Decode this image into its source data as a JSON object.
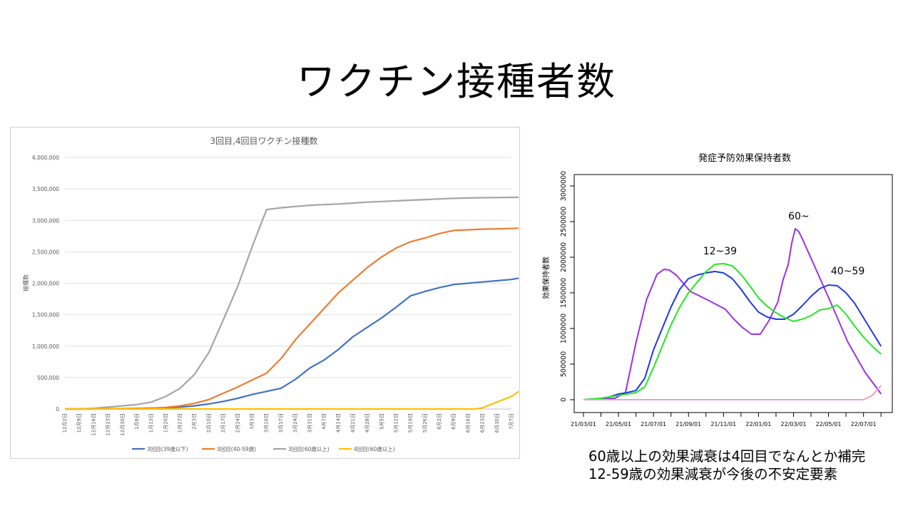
{
  "slide": {
    "title": "ワクチン接種者数"
  },
  "caption": {
    "line1": "60歳以上の効果減衰は4回目でなんとか補完",
    "line2": "12-59歳の効果減衰が今後の不安定要素"
  },
  "chart_data": [
    {
      "type": "line",
      "title": "3回目,4回目ワクチン接種数",
      "xlabel": "",
      "ylabel": "接種数",
      "ylim": [
        0,
        4000000
      ],
      "yticks": [
        0,
        500000,
        1000000,
        1500000,
        2000000,
        2500000,
        3000000,
        3500000,
        4000000
      ],
      "ytick_labels": [
        "0",
        "500,000",
        "1,000,000",
        "1,500,000",
        "2,000,000",
        "2,500,000",
        "3,000,000",
        "3,500,000",
        "4,000,000"
      ],
      "x_tick_labels": [
        "12月2日",
        "12月9日",
        "12月16日",
        "12月23日",
        "12月30日",
        "1月6日",
        "1月13日",
        "1月20日",
        "1月27日",
        "2月3日",
        "2月10日",
        "2月17日",
        "2月24日",
        "3月3日",
        "3月10日",
        "3月17日",
        "3月24日",
        "3月31日",
        "4月7日",
        "4月14日",
        "4月21日",
        "4月28日",
        "5月5日",
        "5月12日",
        "5月19日",
        "5月26日",
        "6月2日",
        "6月9日",
        "6月16日",
        "6月23日",
        "6月30日",
        "7月7日"
      ],
      "x_unit": "weeks since 12月2日",
      "grid": true,
      "legend_position": "bottom",
      "series": [
        {
          "name": "3回目(39歳以下)",
          "color": "#4472C4",
          "x": [
            0,
            1,
            2,
            3,
            4,
            5,
            6,
            7,
            8,
            9,
            10,
            11,
            12,
            13,
            14,
            15,
            16,
            17,
            18,
            19,
            20,
            21,
            22,
            23,
            24,
            25,
            26,
            27,
            28,
            29,
            30,
            31,
            31.5
          ],
          "values": [
            0,
            0,
            0,
            2000,
            5000,
            8000,
            12000,
            20000,
            30000,
            50000,
            80000,
            120000,
            170000,
            230000,
            280000,
            330000,
            470000,
            650000,
            780000,
            950000,
            1150000,
            1300000,
            1450000,
            1620000,
            1800000,
            1870000,
            1930000,
            1980000,
            2000000,
            2020000,
            2040000,
            2060000,
            2080000
          ]
        },
        {
          "name": "3回目(40-59歳)",
          "color": "#ED7D31",
          "x": [
            0,
            1,
            2,
            3,
            4,
            5,
            6,
            7,
            8,
            9,
            10,
            11,
            12,
            13,
            14,
            15,
            16,
            17,
            18,
            19,
            20,
            21,
            22,
            23,
            24,
            25,
            26,
            27,
            28,
            29,
            30,
            31,
            31.5
          ],
          "values": [
            0,
            0,
            0,
            2000,
            5000,
            10000,
            15000,
            25000,
            50000,
            90000,
            150000,
            250000,
            350000,
            460000,
            570000,
            800000,
            1100000,
            1350000,
            1600000,
            1850000,
            2050000,
            2250000,
            2420000,
            2560000,
            2660000,
            2720000,
            2790000,
            2840000,
            2850000,
            2860000,
            2865000,
            2870000,
            2875000
          ]
        },
        {
          "name": "3回目(60歳以上)",
          "color": "#A5A5A5",
          "x": [
            0,
            1,
            2,
            3,
            4,
            5,
            6,
            7,
            8,
            9,
            10,
            11,
            12,
            13,
            14,
            15,
            16,
            17,
            18,
            19,
            20,
            21,
            22,
            23,
            24,
            25,
            26,
            27,
            28,
            29,
            30,
            31,
            31.5
          ],
          "values": [
            0,
            0,
            10000,
            30000,
            50000,
            70000,
            110000,
            200000,
            330000,
            550000,
            900000,
            1420000,
            1950000,
            2580000,
            3170000,
            3200000,
            3220000,
            3240000,
            3250000,
            3260000,
            3275000,
            3290000,
            3300000,
            3310000,
            3320000,
            3330000,
            3340000,
            3350000,
            3355000,
            3360000,
            3362000,
            3365000,
            3366000
          ]
        },
        {
          "name": "4回目(60歳以上)",
          "color": "#FFC000",
          "x": [
            0,
            5,
            10,
            15,
            20,
            25,
            28.5,
            29,
            30,
            31,
            31.5
          ],
          "values": [
            0,
            0,
            0,
            0,
            0,
            0,
            0,
            20000,
            110000,
            200000,
            280000
          ]
        }
      ]
    },
    {
      "type": "line",
      "title": "発症予防効果保持者数",
      "xlabel": "",
      "ylabel": "効果保持者数",
      "ylim": [
        0,
        3000000
      ],
      "yticks": [
        0,
        500000,
        1000000,
        1500000,
        2000000,
        2500000,
        3000000
      ],
      "ytick_labels": [
        "0",
        "500000",
        "1000000",
        "1500000",
        "2000000",
        "2500000",
        "3000000"
      ],
      "x_tick_labels": [
        "21/03/01",
        "21/05/01",
        "21/07/01",
        "21/09/01",
        "21/11/01",
        "22/01/01",
        "22/03/01",
        "22/05/01",
        "22/07/01"
      ],
      "x_unit": "months since 21/03/01",
      "grid": false,
      "annotations": [
        {
          "text": "60~",
          "x": 12.3,
          "y": 2530000
        },
        {
          "text": "12~39",
          "x": 7.8,
          "y": 2040000
        },
        {
          "text": "40~59",
          "x": 15.1,
          "y": 1760000
        }
      ],
      "series": [
        {
          "name": "",
          "color": "#9B30E8",
          "x": [
            0,
            1.8,
            2.4,
            3.0,
            3.6,
            4.2,
            4.6,
            4.9,
            5.3,
            6.1,
            7.1,
            8.1,
            8.6,
            9.1,
            9.6,
            10.1,
            10.6,
            11.1,
            11.4,
            11.7,
            11.9,
            12.1,
            12.3,
            12.5,
            13.1,
            14.1,
            15.1,
            16.1,
            16.8,
            17.0
          ],
          "values": [
            0,
            20000,
            100000,
            800000,
            1400000,
            1760000,
            1830000,
            1820000,
            1750000,
            1520000,
            1400000,
            1270000,
            1130000,
            1010000,
            920000,
            920000,
            1110000,
            1370000,
            1680000,
            1900000,
            2200000,
            2400000,
            2360000,
            2260000,
            1930000,
            1380000,
            810000,
            380000,
            150000,
            80000
          ]
        },
        {
          "name": "12~39",
          "color": "#2038E8",
          "x": [
            0,
            1,
            1.5,
            2,
            2.5,
            3,
            3.5,
            4,
            4.5,
            5,
            5.5,
            6,
            6.5,
            7,
            7.5,
            8,
            8.5,
            9,
            9.5,
            10,
            10.5,
            11,
            11.5,
            12,
            12.5,
            13,
            13.5,
            14,
            14.5,
            15,
            15.5,
            16,
            16.5,
            17
          ],
          "values": [
            0,
            20000,
            40000,
            80000,
            100000,
            130000,
            300000,
            700000,
            1000000,
            1300000,
            1550000,
            1700000,
            1750000,
            1780000,
            1800000,
            1780000,
            1700000,
            1550000,
            1380000,
            1230000,
            1160000,
            1130000,
            1130000,
            1200000,
            1320000,
            1450000,
            1560000,
            1610000,
            1600000,
            1500000,
            1350000,
            1150000,
            950000,
            750000
          ]
        },
        {
          "name": "40~59",
          "color": "#22E822",
          "x": [
            0,
            1,
            1.5,
            2,
            2.5,
            3,
            3.5,
            4,
            4.5,
            5,
            5.5,
            6,
            6.5,
            7,
            7.5,
            8,
            8.5,
            9,
            9.5,
            10,
            10.5,
            11,
            11.5,
            12,
            12.5,
            13,
            13.5,
            14,
            14.5,
            15,
            15.5,
            16,
            16.5,
            17
          ],
          "values": [
            0,
            20000,
            40000,
            60000,
            80000,
            100000,
            180000,
            450000,
            750000,
            1050000,
            1300000,
            1500000,
            1650000,
            1800000,
            1900000,
            1910000,
            1880000,
            1760000,
            1600000,
            1430000,
            1310000,
            1220000,
            1150000,
            1100000,
            1130000,
            1180000,
            1260000,
            1280000,
            1330000,
            1200000,
            1030000,
            880000,
            750000,
            640000
          ]
        },
        {
          "name": "",
          "color": "#F0A0B8",
          "x": [
            0,
            2,
            4,
            6,
            8,
            10,
            12,
            14,
            16,
            16.5,
            17
          ],
          "values": [
            0,
            0,
            0,
            0,
            0,
            0,
            0,
            0,
            0,
            60000,
            200000
          ]
        }
      ]
    }
  ]
}
